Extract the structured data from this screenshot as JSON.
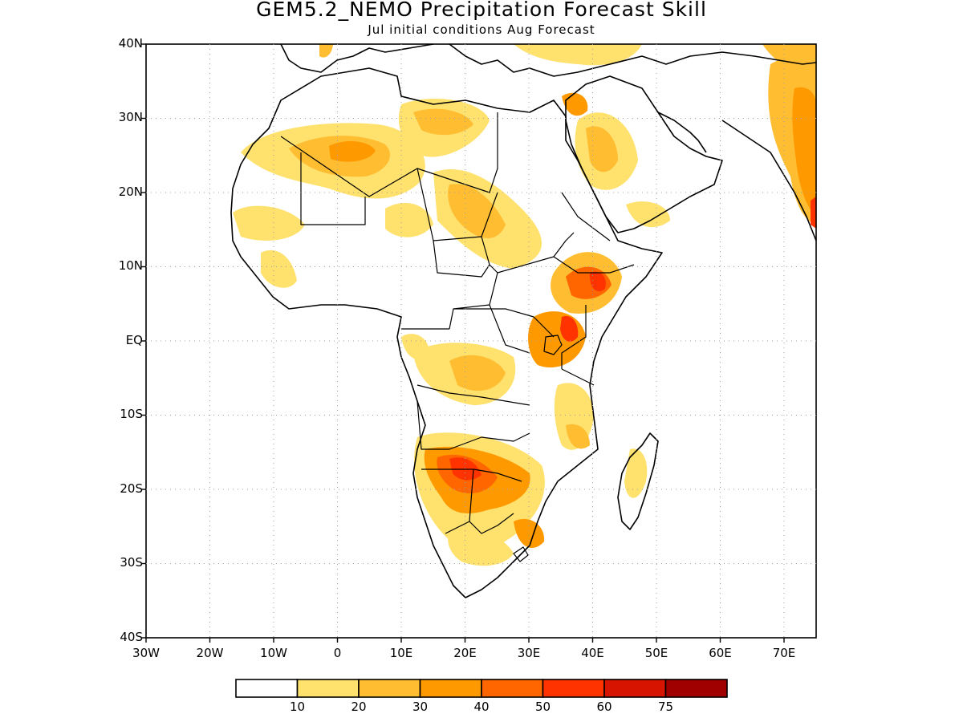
{
  "header": {
    "title": "GEM5.2_NEMO Precipitation Forecast Skill",
    "subtitle": "Jul initial conditions  Aug Forecast"
  },
  "map": {
    "lat_labels": [
      "40N",
      "30N",
      "20N",
      "10N",
      "EQ",
      "10S",
      "20S",
      "30S",
      "40S"
    ],
    "lon_labels": [
      "30W",
      "20W",
      "10W",
      "0",
      "10E",
      "20E",
      "30E",
      "40E",
      "50E",
      "60E",
      "70E"
    ],
    "extent": {
      "lon_min": -30,
      "lon_max": 75,
      "lat_min": -40,
      "lat_max": 40
    }
  },
  "legend": {
    "labels": [
      "10",
      "20",
      "30",
      "40",
      "50",
      "60",
      "75"
    ],
    "colors": [
      "#ffffff",
      "#ffe16e",
      "#ffbd32",
      "#ff9900",
      "#ff6600",
      "#ff3300",
      "#d71400",
      "#a00000"
    ]
  }
}
